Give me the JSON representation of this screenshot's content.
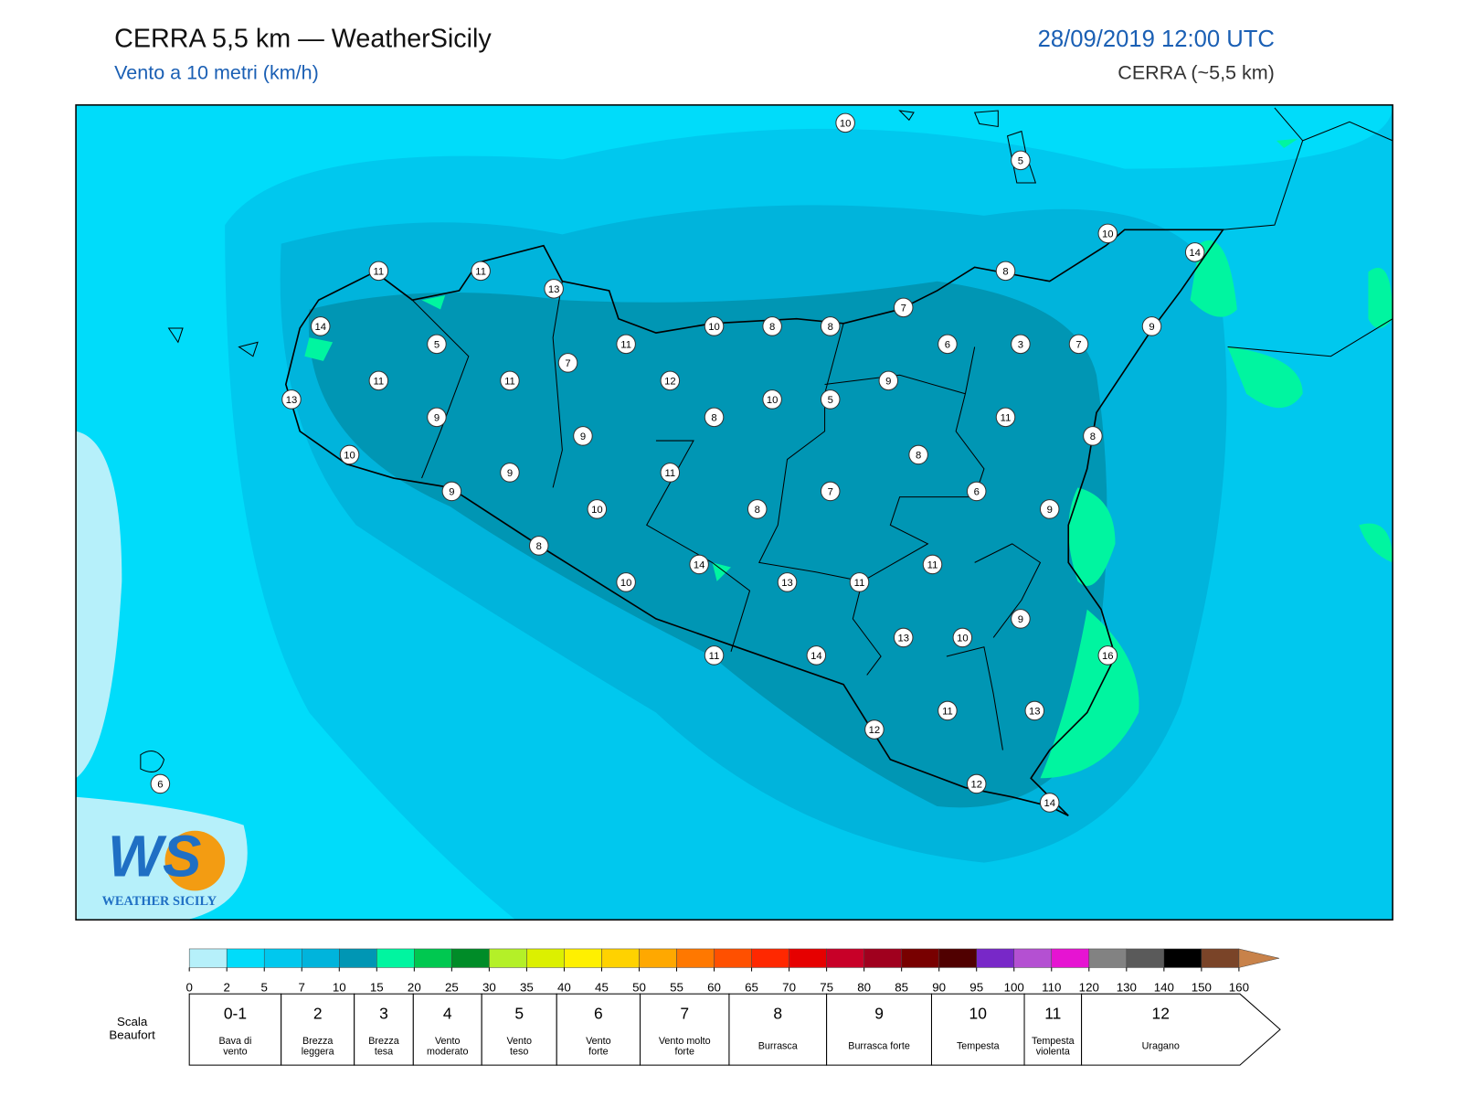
{
  "header": {
    "title": "CERRA 5,5 km — WeatherSicily",
    "subtitle": "Vento a 10 metri (km/h)",
    "datetime": "28/09/2019 12:00 UTC",
    "model": "CERRA (~5,5 km)"
  },
  "logo": {
    "mark": "WS",
    "text": "WEATHER SICILY"
  },
  "stations": [
    10,
    5,
    10,
    14,
    11,
    11,
    13,
    8,
    7,
    14,
    10,
    8,
    8,
    9,
    5,
    11,
    6,
    3,
    7,
    7,
    11,
    11,
    12,
    9,
    13,
    10,
    5,
    9,
    8,
    11,
    9,
    8,
    10,
    8,
    9,
    11,
    9,
    7,
    6,
    10,
    8,
    9,
    8,
    14,
    11,
    10,
    13,
    11,
    9,
    13,
    10,
    16,
    11,
    14,
    11,
    13,
    12,
    12,
    14,
    6
  ],
  "colorbar": {
    "ticks": [
      0,
      2,
      5,
      7,
      10,
      15,
      20,
      25,
      30,
      35,
      40,
      45,
      50,
      55,
      60,
      65,
      70,
      75,
      80,
      85,
      90,
      95,
      100,
      110,
      120,
      130,
      140,
      150,
      160
    ],
    "colors": [
      "#b6f0fa",
      "#00dcfa",
      "#00c8ee",
      "#00b4dc",
      "#0096b4",
      "#00f5a0",
      "#00c850",
      "#008c28",
      "#b4f028",
      "#dcf000",
      "#fff000",
      "#ffd200",
      "#ffa800",
      "#ff7800",
      "#ff5000",
      "#ff2800",
      "#e60000",
      "#c80028",
      "#a0001e",
      "#780000",
      "#500000",
      "#7828c8",
      "#b450d2",
      "#e614d2",
      "#828282",
      "#5a5a5a",
      "#000000",
      "#7a4428"
    ],
    "extend_color": "#c8824a"
  },
  "beaufort": {
    "label": "Scala Beaufort",
    "levels": [
      {
        "force": "0-1",
        "name": "Bava di vento"
      },
      {
        "force": "2",
        "name": "Brezza leggera"
      },
      {
        "force": "3",
        "name": "Brezza tesa"
      },
      {
        "force": "4",
        "name": "Vento moderato"
      },
      {
        "force": "5",
        "name": "Vento teso"
      },
      {
        "force": "6",
        "name": "Vento forte"
      },
      {
        "force": "7",
        "name": "Vento molto forte"
      },
      {
        "force": "8",
        "name": "Burrasca"
      },
      {
        "force": "9",
        "name": "Burrasca forte"
      },
      {
        "force": "10",
        "name": "Tempesta"
      },
      {
        "force": "11",
        "name": "Tempesta violenta"
      },
      {
        "force": "12",
        "name": "Uragano"
      }
    ]
  }
}
